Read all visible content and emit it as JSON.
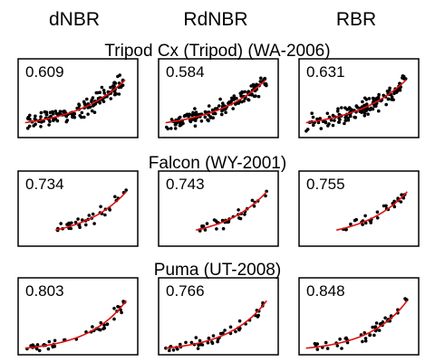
{
  "figure": {
    "column_titles": [
      "dNBR",
      "RdNBR",
      "RBR"
    ]
  },
  "chart_data": [
    {
      "type": "scatter",
      "title": "Tripod Cx (Tripod) (WA-2006)",
      "panels": [
        {
          "index": "dNBR",
          "annotation": "0.609"
        },
        {
          "index": "RdNBR",
          "annotation": "0.584"
        },
        {
          "index": "RBR",
          "annotation": "0.631"
        }
      ],
      "n_points_approx": 150,
      "fit": "exponential",
      "xlabel": "",
      "ylabel": "",
      "grid": false,
      "colors": {
        "points": "#000000",
        "fit": "#e01010"
      }
    },
    {
      "type": "scatter",
      "title": "Falcon (WY-2001)",
      "panels": [
        {
          "index": "dNBR",
          "annotation": "0.734"
        },
        {
          "index": "RdNBR",
          "annotation": "0.743"
        },
        {
          "index": "RBR",
          "annotation": "0.755"
        }
      ],
      "n_points_approx": 35,
      "fit": "exponential",
      "xlabel": "",
      "ylabel": "",
      "grid": false,
      "colors": {
        "points": "#000000",
        "fit": "#e01010"
      }
    },
    {
      "type": "scatter",
      "title": "Puma (UT-2008)",
      "panels": [
        {
          "index": "dNBR",
          "annotation": "0.803"
        },
        {
          "index": "RdNBR",
          "annotation": "0.766"
        },
        {
          "index": "RBR",
          "annotation": "0.848"
        }
      ],
      "n_points_approx": 45,
      "fit": "exponential",
      "xlabel": "",
      "ylabel": "",
      "grid": false,
      "colors": {
        "points": "#000000",
        "fit": "#e01010"
      }
    }
  ]
}
